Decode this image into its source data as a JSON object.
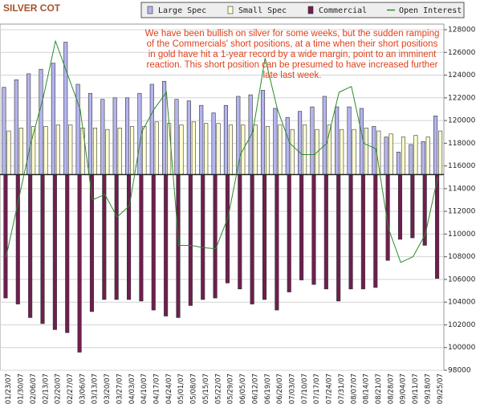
{
  "chart_data": {
    "type": "bar",
    "title": "SILVER COT",
    "annotation": "We have been bullish on silver for some weeks, but the sudden ramping of the Commercials' short positions, at a time when their short positions in gold have hit a 1-year record by a wide margin, point to an imminent reaction. This short position can be presumed to have increased further late last week.",
    "categories": [
      "01/23/07",
      "01/30/07",
      "02/06/07",
      "02/13/07",
      "02/20/07",
      "02/27/07",
      "03/06/07",
      "03/13/07",
      "03/20/07",
      "03/27/07",
      "04/03/07",
      "04/10/07",
      "04/17/07",
      "04/24/07",
      "05/01/07",
      "05/08/07",
      "05/15/07",
      "05/22/07",
      "05/29/07",
      "06/05/07",
      "06/12/07",
      "06/19/07",
      "06/26/07",
      "07/03/07",
      "07/10/07",
      "07/17/07",
      "07/24/07",
      "07/31/07",
      "08/07/07",
      "08/14/07",
      "08/21/07",
      "08/28/07",
      "09/04/07",
      "09/11/07",
      "09/18/07",
      "09/25/07"
    ],
    "series": [
      {
        "name": "Large Spec",
        "color": "#b4b4f0",
        "values": [
          58,
          63,
          67,
          70,
          74,
          88,
          60,
          54,
          50,
          51,
          51,
          54,
          60,
          62,
          50,
          49,
          46,
          41,
          46,
          52,
          53,
          56,
          44,
          38,
          42,
          45,
          52,
          45,
          45,
          44,
          32,
          25,
          15,
          20,
          22,
          39
        ]
      },
      {
        "name": "Small Spec",
        "color": "#ffffd2",
        "values": [
          29,
          31,
          32,
          32,
          33,
          33,
          31,
          31,
          30,
          31,
          32,
          32,
          35,
          34,
          33,
          35,
          34,
          34,
          33,
          33,
          33,
          32,
          33,
          30,
          33,
          30,
          33,
          30,
          30,
          31,
          29,
          27,
          25,
          26,
          25,
          29
        ]
      },
      {
        "name": "Commercial",
        "color": "#6e1f4e",
        "values": [
          -82,
          -86,
          -95,
          -99,
          -103,
          -105,
          -118,
          -91,
          -83,
          -83,
          -83,
          -84,
          -90,
          -94,
          -95,
          -87,
          -83,
          -82,
          -72,
          -76,
          -86,
          -83,
          -90,
          -78,
          -70,
          -73,
          -76,
          -84,
          -76,
          -76,
          -75,
          -57,
          -43,
          -42,
          -47,
          -69
        ]
      },
      {
        "name": "Open Interest",
        "color": "#2a8a2a",
        "axis": "y2",
        "values": [
          108000,
          113000,
          118000,
          122000,
          127000,
          124000,
          121000,
          113000,
          113500,
          111500,
          112500,
          119000,
          121000,
          122500,
          109000,
          109000,
          108800,
          108700,
          111500,
          117000,
          119000,
          125500,
          121000,
          118000,
          117000,
          117000,
          118000,
          122500,
          123000,
          118000,
          117500,
          110500,
          107500,
          108000,
          110000,
          115000
        ]
      }
    ],
    "ylim": [
      -130,
      100
    ],
    "y2lim": [
      98000,
      128000
    ],
    "y2ticks": [
      98000,
      100000,
      102000,
      104000,
      106000,
      108000,
      110000,
      112000,
      114000,
      116000,
      118000,
      120000,
      122000,
      124000,
      126000,
      128000
    ],
    "grid": true
  }
}
